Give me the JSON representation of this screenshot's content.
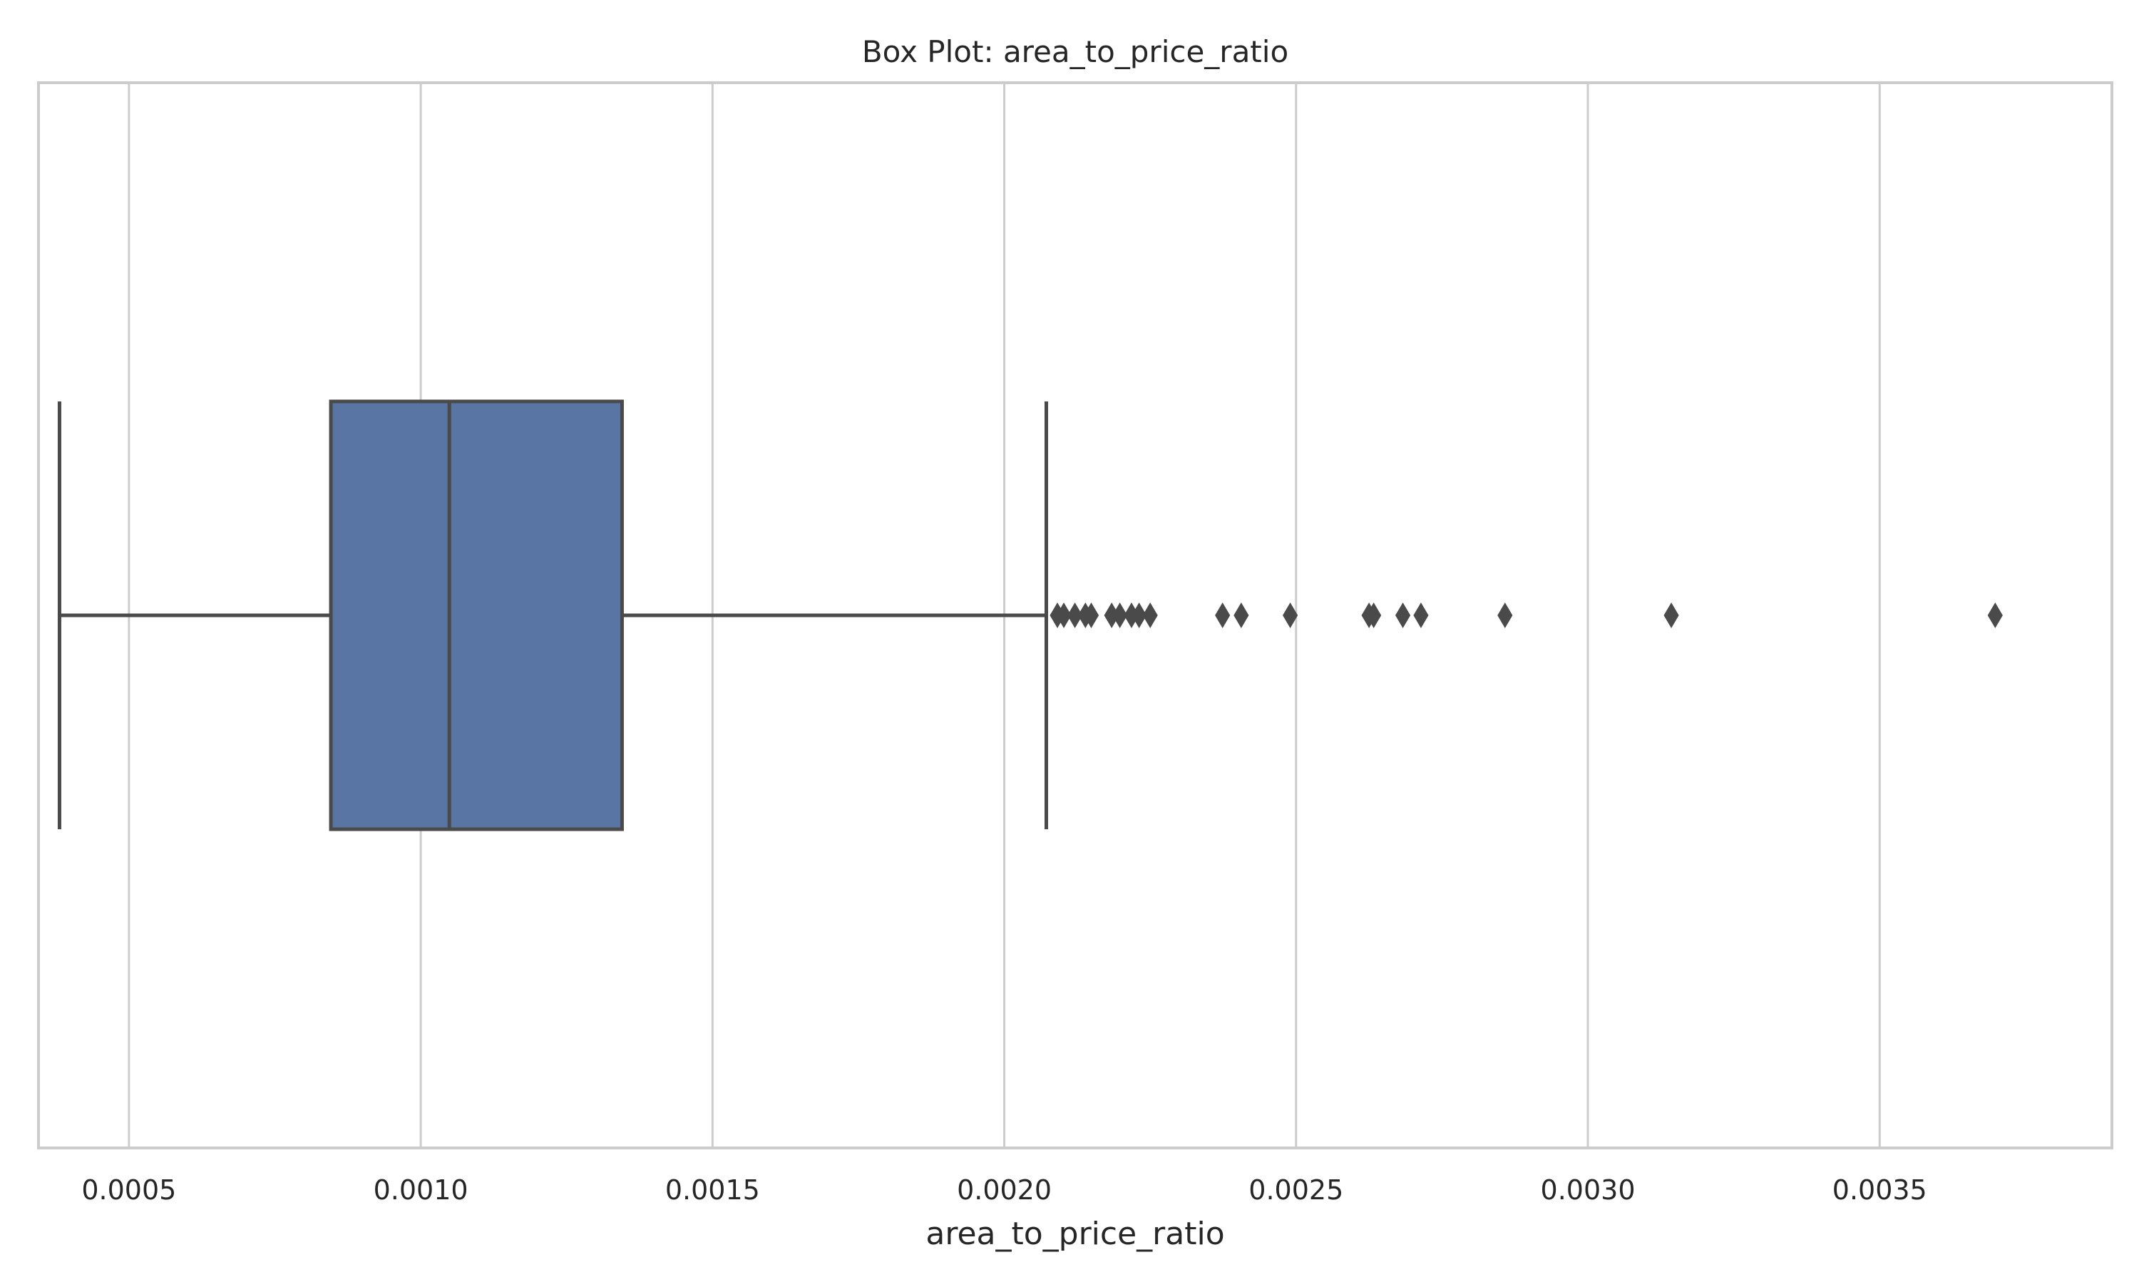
{
  "chart_data": {
    "type": "box",
    "title": "Box Plot: area_to_price_ratio",
    "xlabel": "area_to_price_ratio",
    "ylabel": "",
    "orientation": "horizontal",
    "xlim": [
      0.000345,
      0.003898
    ],
    "xticks": [
      0.0005,
      0.001,
      0.0015,
      0.002,
      0.0025,
      0.003,
      0.0035
    ],
    "xtick_labels": [
      "0.0005",
      "0.0010",
      "0.0015",
      "0.0020",
      "0.0025",
      "0.0030",
      "0.0035"
    ],
    "grid": true,
    "box": {
      "whisker_low": 0.000381,
      "q1": 0.000846,
      "median": 0.001049,
      "q3": 0.001345,
      "whisker_high": 0.002072
    },
    "outliers": [
      0.002091,
      0.002102,
      0.002121,
      0.002139,
      0.002149,
      0.002184,
      0.002198,
      0.002218,
      0.002231,
      0.00225,
      0.002374,
      0.002406,
      0.00249,
      0.002625,
      0.002633,
      0.002683,
      0.002714,
      0.002858,
      0.003143,
      0.003698
    ],
    "colors": {
      "box_fill": "#5975a4",
      "line": "#4a4a4a",
      "grid": "#cccccc",
      "frame": "#cccccc"
    }
  }
}
